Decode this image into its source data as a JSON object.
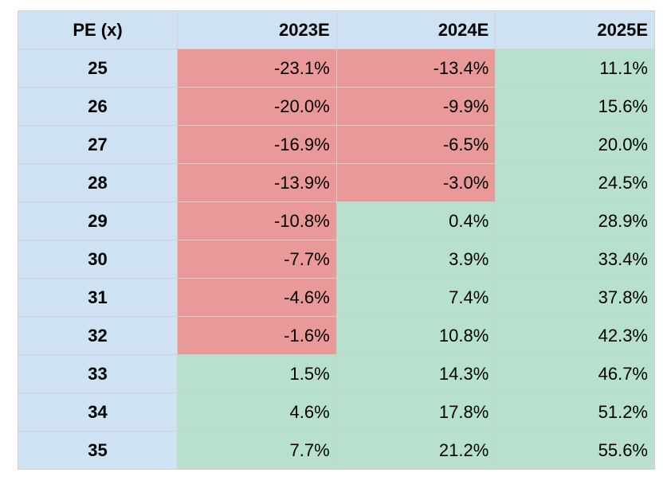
{
  "chart_data": {
    "type": "table",
    "columns": [
      "PE (x)",
      "2023E",
      "2024E",
      "2025E"
    ],
    "rows": [
      {
        "pe": "25",
        "values": [
          "-23.1%",
          "-13.4%",
          "11.1%"
        ]
      },
      {
        "pe": "26",
        "values": [
          "-20.0%",
          "-9.9%",
          "15.6%"
        ]
      },
      {
        "pe": "27",
        "values": [
          "-16.9%",
          "-6.5%",
          "20.0%"
        ]
      },
      {
        "pe": "28",
        "values": [
          "-13.9%",
          "-3.0%",
          "24.5%"
        ]
      },
      {
        "pe": "29",
        "values": [
          "-10.8%",
          "0.4%",
          "28.9%"
        ]
      },
      {
        "pe": "30",
        "values": [
          "-7.7%",
          "3.9%",
          "33.4%"
        ]
      },
      {
        "pe": "31",
        "values": [
          "-4.6%",
          "7.4%",
          "37.8%"
        ]
      },
      {
        "pe": "32",
        "values": [
          "-1.6%",
          "10.8%",
          "42.3%"
        ]
      },
      {
        "pe": "33",
        "values": [
          "1.5%",
          "14.3%",
          "46.7%"
        ]
      },
      {
        "pe": "34",
        "values": [
          "4.6%",
          "17.8%",
          "51.2%"
        ]
      },
      {
        "pe": "35",
        "values": [
          "7.7%",
          "21.2%",
          "55.6%"
        ]
      }
    ],
    "colors": {
      "header_bg": "#cfe2f3",
      "negative_bg": "#ea9999",
      "positive_bg": "#b7e1cd"
    }
  }
}
